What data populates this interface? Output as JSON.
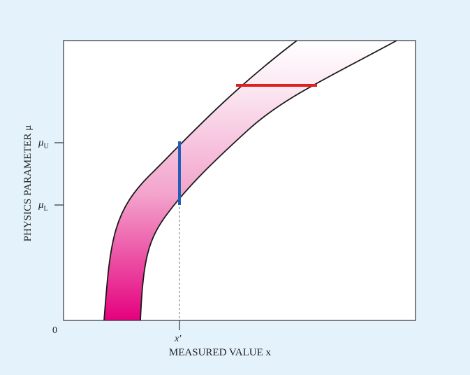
{
  "figure": {
    "y_axis_label": "PHYSICS PARAMETER μ",
    "x_axis_label": "MEASURED VALUE x",
    "origin_label": "0",
    "x_prime_label": "x′",
    "mu_upper_label": "μ",
    "mu_upper_subscript": "U",
    "mu_lower_label": "μ",
    "mu_lower_subscript": "L"
  },
  "colors": {
    "background": "#e3f2fb",
    "band_top": "#fdf1f7",
    "band_bottom": "#e5007e",
    "vertical_interval": "#1f5fb5",
    "horizontal_interval": "#e02020"
  }
}
